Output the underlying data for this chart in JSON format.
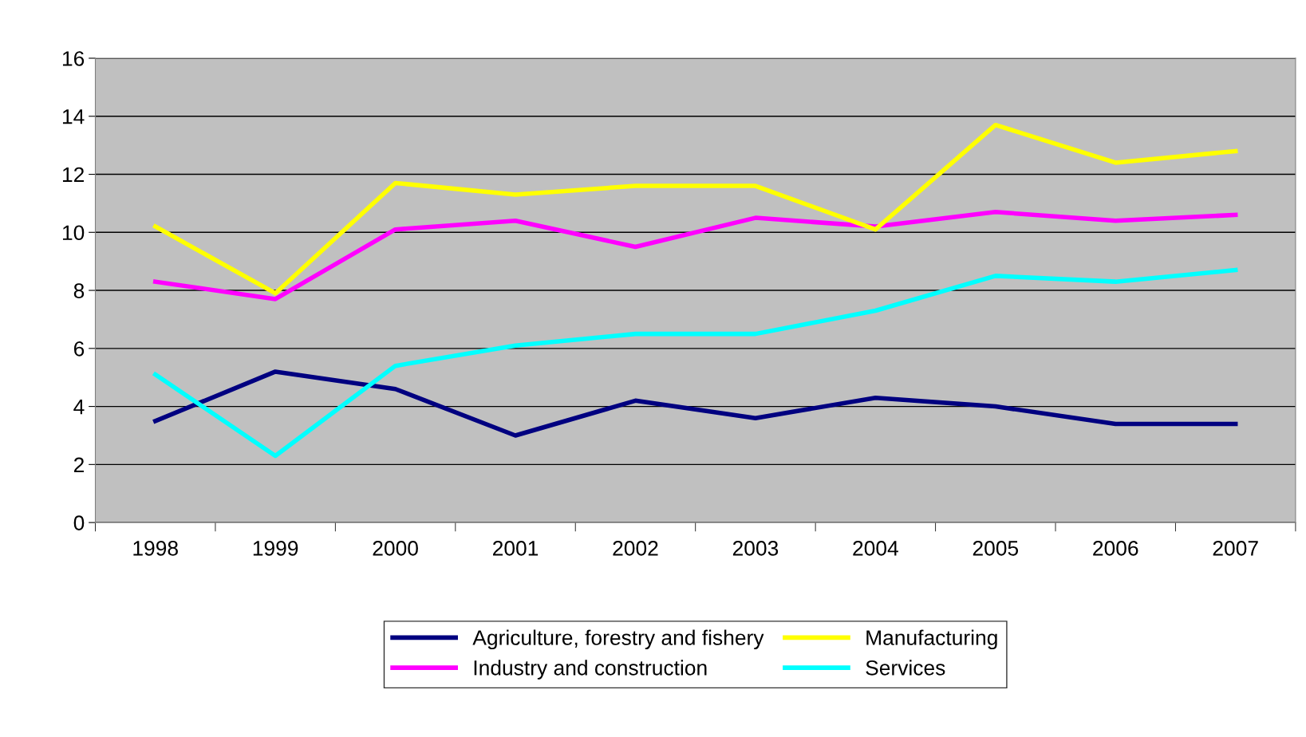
{
  "chart_data": {
    "type": "line",
    "categories": [
      "1998",
      "1999",
      "2000",
      "2001",
      "2002",
      "2003",
      "2004",
      "2005",
      "2006",
      "2007"
    ],
    "series": [
      {
        "name": "Agriculture, forestry and fishery",
        "color": "#000080",
        "values": [
          3.5,
          5.2,
          4.6,
          3.0,
          4.2,
          3.6,
          4.3,
          4.0,
          3.4,
          3.4
        ]
      },
      {
        "name": "Industry and construction",
        "color": "#ff00ff",
        "values": [
          8.3,
          7.7,
          10.1,
          10.4,
          9.5,
          10.5,
          10.2,
          10.7,
          10.4,
          10.6
        ]
      },
      {
        "name": "Manufacturing",
        "color": "#ffff00",
        "values": [
          10.2,
          7.9,
          11.7,
          11.3,
          11.6,
          11.6,
          10.1,
          13.7,
          12.4,
          12.8
        ]
      },
      {
        "name": "Services",
        "color": "#00ffff",
        "values": [
          5.1,
          2.3,
          5.4,
          6.1,
          6.5,
          6.5,
          7.3,
          8.5,
          8.3,
          8.7
        ]
      }
    ],
    "ylim": [
      0,
      16
    ],
    "yticks": [
      0,
      2,
      4,
      6,
      8,
      10,
      12,
      14,
      16
    ],
    "grid": "y",
    "legend": "bottom",
    "marker": "none",
    "line_style": "solid"
  }
}
